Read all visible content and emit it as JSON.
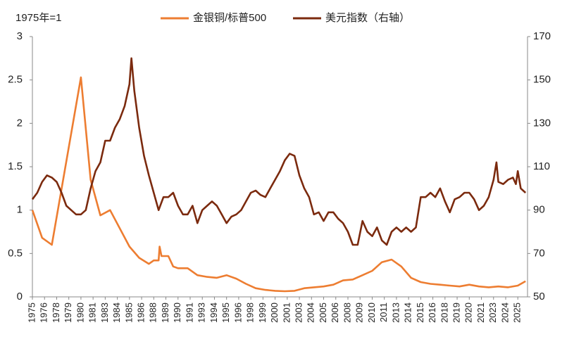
{
  "chart_data": {
    "type": "line",
    "ylabel": "1975年=1",
    "xlim": [
      1975,
      2026
    ],
    "xticks": [
      1975,
      {
        "value": 1976.25,
        "label": "1976"
      },
      {
        "value": 1977.5,
        "label": "1978"
      },
      {
        "value": 1978.75,
        "label": "1979"
      },
      1980,
      {
        "value": 1981.25,
        "label": "1981"
      },
      {
        "value": 1982.5,
        "label": "1983"
      },
      {
        "value": 1983.75,
        "label": "1984"
      },
      1985,
      {
        "value": 1986.25,
        "label": "1986"
      },
      {
        "value": 1987.5,
        "label": "1988"
      },
      {
        "value": 1988.75,
        "label": "1989"
      },
      1990,
      {
        "value": 1991.25,
        "label": "1991"
      },
      {
        "value": 1992.5,
        "label": "1993"
      },
      {
        "value": 1993.75,
        "label": "1994"
      },
      1995,
      {
        "value": 1996.25,
        "label": "1996"
      },
      {
        "value": 1997.5,
        "label": "1998"
      },
      {
        "value": 1998.75,
        "label": "1999"
      },
      2000,
      {
        "value": 2001.25,
        "label": "2001"
      },
      {
        "value": 2002.5,
        "label": "2003"
      },
      {
        "value": 2003.75,
        "label": "2004"
      },
      2005,
      {
        "value": 2006.25,
        "label": "2006"
      },
      {
        "value": 2007.5,
        "label": "2008"
      },
      {
        "value": 2008.75,
        "label": "2009"
      },
      2010,
      {
        "value": 2011.25,
        "label": "2011"
      },
      {
        "value": 2012.5,
        "label": "2013"
      },
      {
        "value": 2013.75,
        "label": "2014"
      },
      2015,
      {
        "value": 2016.25,
        "label": "2016"
      },
      {
        "value": 2017.5,
        "label": "2018"
      },
      {
        "value": 2018.75,
        "label": "2019"
      },
      2020,
      {
        "value": 2021.25,
        "label": "2021"
      },
      {
        "value": 2022.5,
        "label": "2023"
      },
      {
        "value": 2023.75,
        "label": "2024"
      },
      2025
    ],
    "ylim": [
      0,
      3
    ],
    "yticks": [
      0,
      0.5,
      1,
      1.5,
      2,
      2.5,
      3
    ],
    "y2lim": [
      50,
      170
    ],
    "y2ticks": [
      50,
      70,
      90,
      110,
      130,
      150,
      170
    ],
    "series": [
      {
        "name": "金银铜/标普500",
        "color": "#ED7D31",
        "x": [
          1975,
          1976,
          1977,
          1980,
          1981,
          1982,
          1983,
          1985,
          1986,
          1987,
          1987.5,
          1988,
          1988.1,
          1988.3,
          1989,
          1989.5,
          1990,
          1991,
          1992,
          1993,
          1994,
          1995,
          1996,
          1997,
          1998,
          1999,
          2000,
          2001,
          2002,
          2003,
          2004,
          2005,
          2006,
          2007,
          2008,
          2009,
          2010,
          2011,
          2012,
          2013,
          2014,
          2015,
          2016,
          2017,
          2018,
          2019,
          2020,
          2021,
          2022,
          2023,
          2024,
          2025,
          2025.8
        ],
        "values": [
          1.0,
          0.68,
          0.6,
          2.53,
          1.35,
          0.94,
          1.0,
          0.58,
          0.45,
          0.38,
          0.42,
          0.42,
          0.58,
          0.47,
          0.47,
          0.35,
          0.33,
          0.33,
          0.25,
          0.23,
          0.22,
          0.25,
          0.21,
          0.15,
          0.1,
          0.08,
          0.07,
          0.065,
          0.07,
          0.1,
          0.11,
          0.12,
          0.14,
          0.19,
          0.2,
          0.25,
          0.3,
          0.4,
          0.43,
          0.35,
          0.22,
          0.17,
          0.15,
          0.14,
          0.13,
          0.12,
          0.14,
          0.12,
          0.11,
          0.12,
          0.11,
          0.13,
          0.18
        ]
      },
      {
        "name": "美元指数（右轴）",
        "color": "#7B2A0E",
        "axis": "y2",
        "x": [
          1975,
          1975.5,
          1976,
          1976.5,
          1977,
          1977.5,
          1978,
          1978.5,
          1979,
          1979.5,
          1980,
          1980.5,
          1981,
          1981.5,
          1982,
          1982.5,
          1983,
          1983.5,
          1984,
          1984.5,
          1985,
          1985.2,
          1985.5,
          1986,
          1986.5,
          1987,
          1987.5,
          1988,
          1988.5,
          1989,
          1989.5,
          1990,
          1990.5,
          1991,
          1991.5,
          1992,
          1992.5,
          1993,
          1993.5,
          1994,
          1994.5,
          1995,
          1995.5,
          1996,
          1996.5,
          1997,
          1997.5,
          1998,
          1998.5,
          1999,
          1999.5,
          2000,
          2000.5,
          2001,
          2001.5,
          2002,
          2002.5,
          2003,
          2003.5,
          2004,
          2004.5,
          2005,
          2005.5,
          2006,
          2006.5,
          2007,
          2007.5,
          2008,
          2008.5,
          2009,
          2009.5,
          2010,
          2010.5,
          2011,
          2011.5,
          2012,
          2012.5,
          2013,
          2013.5,
          2014,
          2014.5,
          2015,
          2015.5,
          2016,
          2016.5,
          2017,
          2017.5,
          2018,
          2018.5,
          2019,
          2019.5,
          2020,
          2020.5,
          2021,
          2021.5,
          2022,
          2022.5,
          2022.8,
          2023,
          2023.5,
          2024,
          2024.5,
          2024.8,
          2025,
          2025.3,
          2025.8
        ],
        "values": [
          95,
          98,
          103,
          106,
          105,
          103,
          98,
          92,
          90,
          88,
          88,
          90,
          100,
          108,
          112,
          122,
          122,
          128,
          132,
          138,
          148,
          160,
          145,
          128,
          115,
          106,
          98,
          90,
          96,
          96,
          98,
          92,
          88,
          88,
          92,
          84,
          90,
          92,
          94,
          92,
          88,
          84,
          87,
          88,
          90,
          94,
          98,
          99,
          97,
          96,
          100,
          104,
          108,
          113,
          116,
          115,
          106,
          100,
          96,
          88,
          89,
          85,
          89,
          89,
          86,
          84,
          80,
          74,
          74,
          85,
          80,
          78,
          82,
          76,
          74,
          80,
          82,
          80,
          82,
          80,
          82,
          96,
          96,
          98,
          96,
          100,
          94,
          89,
          95,
          96,
          98,
          98,
          95,
          90,
          92,
          96,
          104,
          112,
          103,
          102,
          104,
          105,
          102,
          108,
          100,
          98
        ]
      }
    ]
  }
}
